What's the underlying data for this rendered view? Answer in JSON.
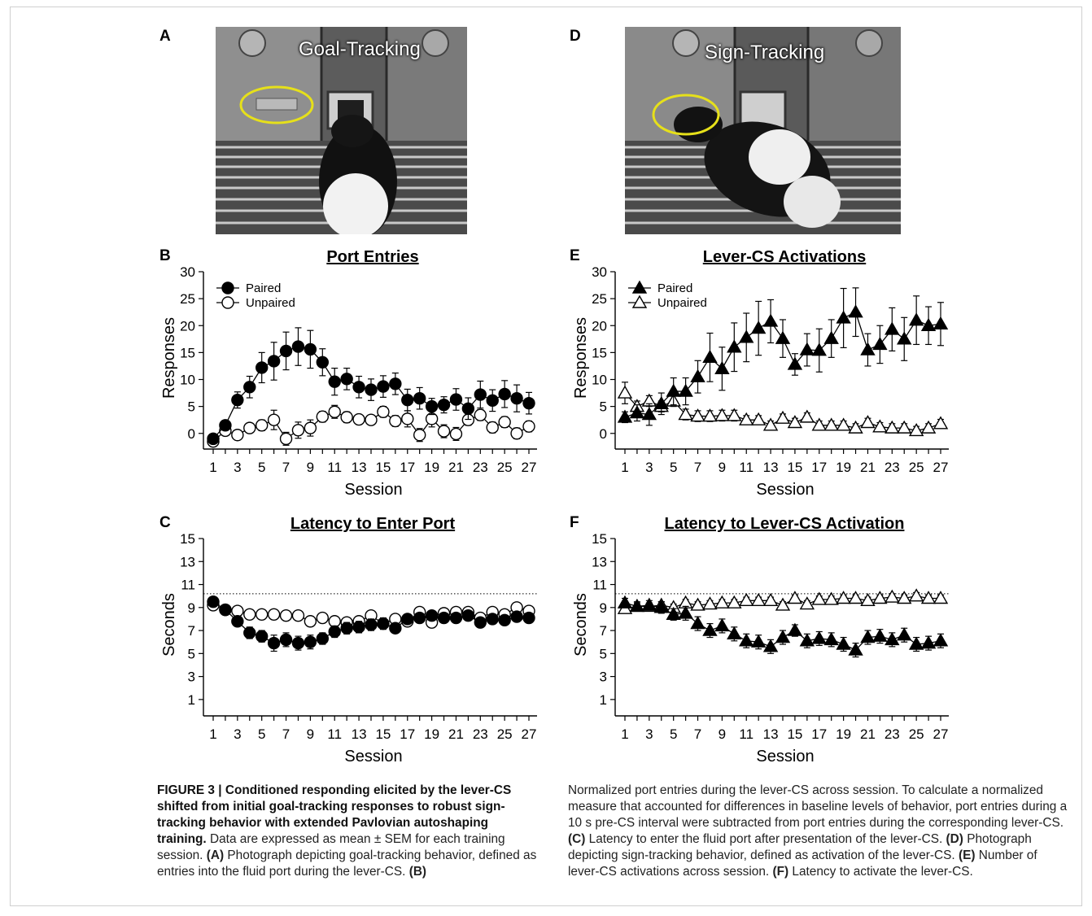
{
  "panels": {
    "A": {
      "letter": "A",
      "photo_label": "Goal-Tracking"
    },
    "B": {
      "letter": "B"
    },
    "C": {
      "letter": "C"
    },
    "D": {
      "letter": "D",
      "photo_label": "Sign-Tracking"
    },
    "E": {
      "letter": "E"
    },
    "F": {
      "letter": "F"
    }
  },
  "chart_data": [
    {
      "id": "B",
      "type": "line",
      "title": "Port Entries",
      "xlabel": "Session",
      "ylabel": "Responses",
      "ylim": [
        -2,
        30
      ],
      "yticks": [
        0,
        5,
        10,
        15,
        20,
        25,
        30
      ],
      "xticks": [
        1,
        3,
        5,
        7,
        9,
        11,
        13,
        15,
        17,
        19,
        21,
        23,
        25,
        27
      ],
      "marker": "circle",
      "legend": "top-left",
      "x": [
        1,
        2,
        3,
        4,
        5,
        6,
        7,
        8,
        9,
        10,
        11,
        12,
        13,
        14,
        15,
        16,
        17,
        18,
        19,
        20,
        21,
        22,
        23,
        24,
        25,
        26,
        27
      ],
      "series": [
        {
          "name": "Paired",
          "filled": true,
          "values": [
            -1.0,
            1.5,
            6.2,
            8.6,
            12.2,
            13.4,
            15.3,
            16.1,
            15.6,
            13.2,
            9.6,
            10.1,
            8.6,
            8.1,
            8.7,
            9.2,
            6.2,
            6.5,
            5.0,
            5.3,
            6.3,
            4.6,
            7.2,
            6.1,
            7.3,
            6.5,
            5.6
          ],
          "err": [
            0.8,
            0.8,
            1.5,
            2.0,
            2.8,
            3.5,
            3.5,
            3.5,
            3.5,
            2.5,
            2.5,
            2.0,
            2.0,
            2.0,
            2.0,
            2.0,
            2.0,
            2.0,
            1.5,
            1.5,
            2.0,
            2.0,
            2.5,
            2.0,
            2.5,
            2.5,
            2.0
          ]
        },
        {
          "name": "Unpaired",
          "filled": false,
          "values": [
            -1.5,
            0.5,
            -0.3,
            1.0,
            1.5,
            2.5,
            -1.0,
            0.6,
            1.0,
            3.1,
            4.0,
            3.0,
            2.6,
            2.5,
            4.0,
            2.3,
            2.7,
            -0.3,
            2.7,
            0.4,
            -0.1,
            2.5,
            3.4,
            1.1,
            2.1,
            0.0,
            1.3
          ],
          "err": [
            0.8,
            0.8,
            0.8,
            0.8,
            1.0,
            1.8,
            1.2,
            1.5,
            1.5,
            1.0,
            1.2,
            1.0,
            0.8,
            0.8,
            1.0,
            1.0,
            1.5,
            1.2,
            1.5,
            1.2,
            1.2,
            1.0,
            1.0,
            1.0,
            1.0,
            1.0,
            1.0
          ]
        }
      ]
    },
    {
      "id": "C",
      "type": "line",
      "title": "Latency to Enter Port",
      "xlabel": "Session",
      "ylabel": "Seconds",
      "ylim": [
        0,
        15
      ],
      "yticks": [
        1,
        3,
        5,
        7,
        9,
        11,
        13,
        15
      ],
      "xticks": [
        1,
        3,
        5,
        7,
        9,
        11,
        13,
        15,
        17,
        19,
        21,
        23,
        25,
        27
      ],
      "marker": "circle",
      "reference_line": 10.2,
      "x": [
        1,
        2,
        3,
        4,
        5,
        6,
        7,
        8,
        9,
        10,
        11,
        12,
        13,
        14,
        15,
        16,
        17,
        18,
        19,
        20,
        21,
        22,
        23,
        24,
        25,
        26,
        27
      ],
      "series": [
        {
          "name": "Paired",
          "filled": true,
          "values": [
            9.5,
            8.8,
            7.8,
            6.8,
            6.5,
            5.9,
            6.2,
            5.9,
            6.0,
            6.3,
            6.9,
            7.2,
            7.3,
            7.5,
            7.6,
            7.2,
            8.0,
            8.1,
            8.3,
            8.1,
            8.1,
            8.3,
            7.7,
            8.0,
            7.9,
            8.2,
            8.1
          ],
          "err": [
            0.3,
            0.4,
            0.4,
            0.5,
            0.5,
            0.7,
            0.6,
            0.6,
            0.6,
            0.5,
            0.5,
            0.5,
            0.5,
            0.5,
            0.5,
            0.4,
            0.4,
            0.4,
            0.4,
            0.4,
            0.4,
            0.4,
            0.4,
            0.4,
            0.4,
            0.4,
            0.4
          ]
        },
        {
          "name": "Unpaired",
          "filled": false,
          "values": [
            9.2,
            8.8,
            8.7,
            8.4,
            8.4,
            8.4,
            8.3,
            8.3,
            7.8,
            8.1,
            7.8,
            7.7,
            7.8,
            8.3,
            7.6,
            8.0,
            7.8,
            8.6,
            7.7,
            8.5,
            8.6,
            8.6,
            8.1,
            8.6,
            8.4,
            9.0,
            8.7
          ],
          "err": [
            0.3,
            0.3,
            0.3,
            0.3,
            0.3,
            0.3,
            0.3,
            0.3,
            0.3,
            0.3,
            0.3,
            0.3,
            0.3,
            0.3,
            0.3,
            0.3,
            0.3,
            0.3,
            0.3,
            0.3,
            0.3,
            0.3,
            0.3,
            0.3,
            0.3,
            0.3,
            0.3
          ]
        }
      ]
    },
    {
      "id": "E",
      "type": "line",
      "title": "Lever-CS Activations",
      "xlabel": "Session",
      "ylabel": "Responses",
      "ylim": [
        -2,
        30
      ],
      "yticks": [
        0,
        5,
        10,
        15,
        20,
        25,
        30
      ],
      "xticks": [
        1,
        3,
        5,
        7,
        9,
        11,
        13,
        15,
        17,
        19,
        21,
        23,
        25,
        27
      ],
      "marker": "triangle",
      "legend": "top-left",
      "x": [
        1,
        2,
        3,
        4,
        5,
        6,
        7,
        8,
        9,
        10,
        11,
        12,
        13,
        14,
        15,
        16,
        17,
        18,
        19,
        20,
        21,
        22,
        23,
        24,
        25,
        26,
        27
      ],
      "series": [
        {
          "name": "Paired",
          "filled": true,
          "values": [
            3.0,
            3.8,
            3.5,
            5.5,
            7.8,
            7.8,
            10.5,
            14.1,
            12.0,
            16.0,
            17.8,
            19.5,
            20.8,
            17.6,
            12.8,
            15.5,
            15.4,
            17.6,
            21.4,
            22.5,
            15.5,
            16.5,
            19.3,
            17.5,
            21.0,
            20.0,
            20.3
          ],
          "err": [
            1.0,
            1.5,
            2.0,
            2.0,
            2.5,
            2.5,
            3.0,
            4.5,
            4.0,
            4.5,
            4.5,
            5.0,
            4.0,
            3.5,
            2.0,
            3.0,
            4.0,
            3.5,
            5.5,
            4.5,
            3.0,
            3.5,
            4.0,
            4.0,
            4.5,
            3.5,
            4.0
          ]
        },
        {
          "name": "Unpaired",
          "filled": false,
          "values": [
            7.5,
            5.0,
            6.0,
            5.0,
            6.0,
            3.5,
            3.2,
            3.2,
            3.3,
            3.3,
            2.5,
            2.5,
            1.5,
            2.8,
            2.0,
            3.0,
            1.5,
            1.5,
            1.5,
            1.0,
            2.0,
            1.2,
            1.0,
            1.0,
            0.5,
            1.0,
            1.8
          ],
          "err": [
            2.0,
            1.0,
            1.0,
            1.0,
            1.0,
            1.0,
            1.0,
            1.0,
            1.0,
            1.0,
            0.8,
            0.8,
            0.8,
            0.8,
            0.8,
            0.8,
            0.8,
            0.8,
            0.8,
            0.8,
            0.8,
            0.8,
            0.8,
            0.8,
            0.8,
            0.8,
            0.8
          ]
        }
      ]
    },
    {
      "id": "F",
      "type": "line",
      "title": "Latency to Lever-CS Activation",
      "xlabel": "Session",
      "ylabel": "Seconds",
      "ylim": [
        0,
        15
      ],
      "yticks": [
        1,
        3,
        5,
        7,
        9,
        11,
        13,
        15
      ],
      "xticks": [
        1,
        3,
        5,
        7,
        9,
        11,
        13,
        15,
        17,
        19,
        21,
        23,
        25,
        27
      ],
      "marker": "triangle",
      "reference_line": 10.2,
      "x": [
        1,
        2,
        3,
        4,
        5,
        6,
        7,
        8,
        9,
        10,
        11,
        12,
        13,
        14,
        15,
        16,
        17,
        18,
        19,
        20,
        21,
        22,
        23,
        24,
        25,
        26,
        27
      ],
      "series": [
        {
          "name": "Paired",
          "filled": true,
          "values": [
            9.4,
            9.1,
            9.2,
            9.0,
            8.4,
            8.5,
            7.6,
            7.0,
            7.4,
            6.7,
            6.1,
            6.0,
            5.6,
            6.4,
            7.0,
            6.1,
            6.3,
            6.2,
            5.8,
            5.3,
            6.4,
            6.5,
            6.2,
            6.6,
            5.8,
            5.9,
            6.1
          ],
          "err": [
            0.4,
            0.4,
            0.4,
            0.5,
            0.5,
            0.6,
            0.6,
            0.6,
            0.6,
            0.6,
            0.6,
            0.6,
            0.6,
            0.6,
            0.5,
            0.6,
            0.6,
            0.6,
            0.6,
            0.6,
            0.6,
            0.6,
            0.6,
            0.6,
            0.6,
            0.6,
            0.6
          ]
        },
        {
          "name": "Unpaired",
          "filled": false,
          "values": [
            8.9,
            9.1,
            9.1,
            9.2,
            9.0,
            9.4,
            9.2,
            9.3,
            9.4,
            9.4,
            9.6,
            9.6,
            9.6,
            9.2,
            9.8,
            9.3,
            9.7,
            9.7,
            9.8,
            9.8,
            9.6,
            9.8,
            9.9,
            9.8,
            10.0,
            9.8,
            9.8
          ],
          "err": [
            0.3,
            0.3,
            0.3,
            0.3,
            0.3,
            0.3,
            0.3,
            0.3,
            0.3,
            0.3,
            0.3,
            0.3,
            0.3,
            0.3,
            0.3,
            0.3,
            0.3,
            0.3,
            0.3,
            0.3,
            0.3,
            0.3,
            0.3,
            0.3,
            0.3,
            0.3,
            0.3
          ]
        }
      ]
    }
  ],
  "caption": {
    "title": "FIGURE 3 | Conditioned responding elicited by the lever-CS shifted from initial goal-tracking responses to robust sign-tracking behavior with extended Pavlovian autoshaping training.",
    "s1": " Data are expressed as mean ± SEM for each training session. ",
    "label_a": "(A)",
    "text_a": " Photograph depicting goal-tracking behavior, defined as entries into the fluid port during the lever-CS. ",
    "label_b": "(B)",
    "text_b": " Normalized port entries during the lever-CS across session. To calculate a normalized measure that accounted for differences in baseline levels of behavior, port entries during a 10 s pre-CS interval were subtracted from port entries during the corresponding lever-CS. ",
    "label_c": "(C)",
    "text_c": " Latency to enter the fluid port after presentation of the lever-CS. ",
    "label_d": "(D)",
    "text_d": " Photograph depicting sign-tracking behavior, defined as activation of the lever-CS. ",
    "label_e": "(E)",
    "text_e": " Number of lever-CS activations across session. ",
    "label_f": "(F)",
    "text_f": " Latency to activate the lever-CS."
  }
}
